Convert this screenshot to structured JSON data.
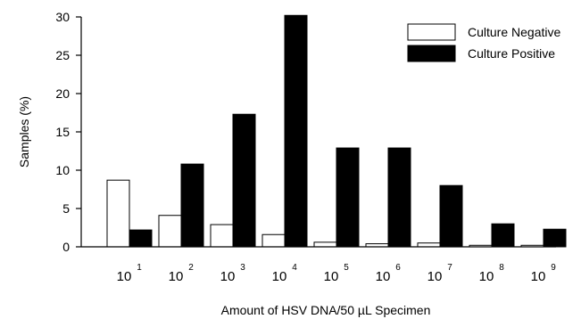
{
  "chart_data": {
    "type": "bar",
    "xlabel": "Amount of HSV DNA/50 µL Specimen",
    "ylabel": "Samples (%)",
    "ylim": [
      0,
      30
    ],
    "yticks": [
      "0",
      "5",
      "10",
      "15",
      "20",
      "25",
      "30"
    ],
    "categories": [
      {
        "base": "10",
        "exp": "1"
      },
      {
        "base": "10",
        "exp": "2"
      },
      {
        "base": "10",
        "exp": "3"
      },
      {
        "base": "10",
        "exp": "4"
      },
      {
        "base": "10",
        "exp": "5"
      },
      {
        "base": "10",
        "exp": "6"
      },
      {
        "base": "10",
        "exp": "7"
      },
      {
        "base": "10",
        "exp": "8"
      },
      {
        "base": "10",
        "exp": "9"
      }
    ],
    "series": [
      {
        "name": "Culture Negative",
        "fill": "#ffffff",
        "values": [
          8.7,
          4.1,
          2.9,
          1.6,
          0.6,
          0.4,
          0.5,
          0.2,
          0.2
        ]
      },
      {
        "name": "Culture Positive",
        "fill": "#000000",
        "values": [
          2.2,
          10.8,
          17.3,
          30.2,
          12.9,
          12.9,
          8.0,
          3.0,
          2.3
        ]
      }
    ],
    "legend_position": "top-right",
    "grid": false
  }
}
